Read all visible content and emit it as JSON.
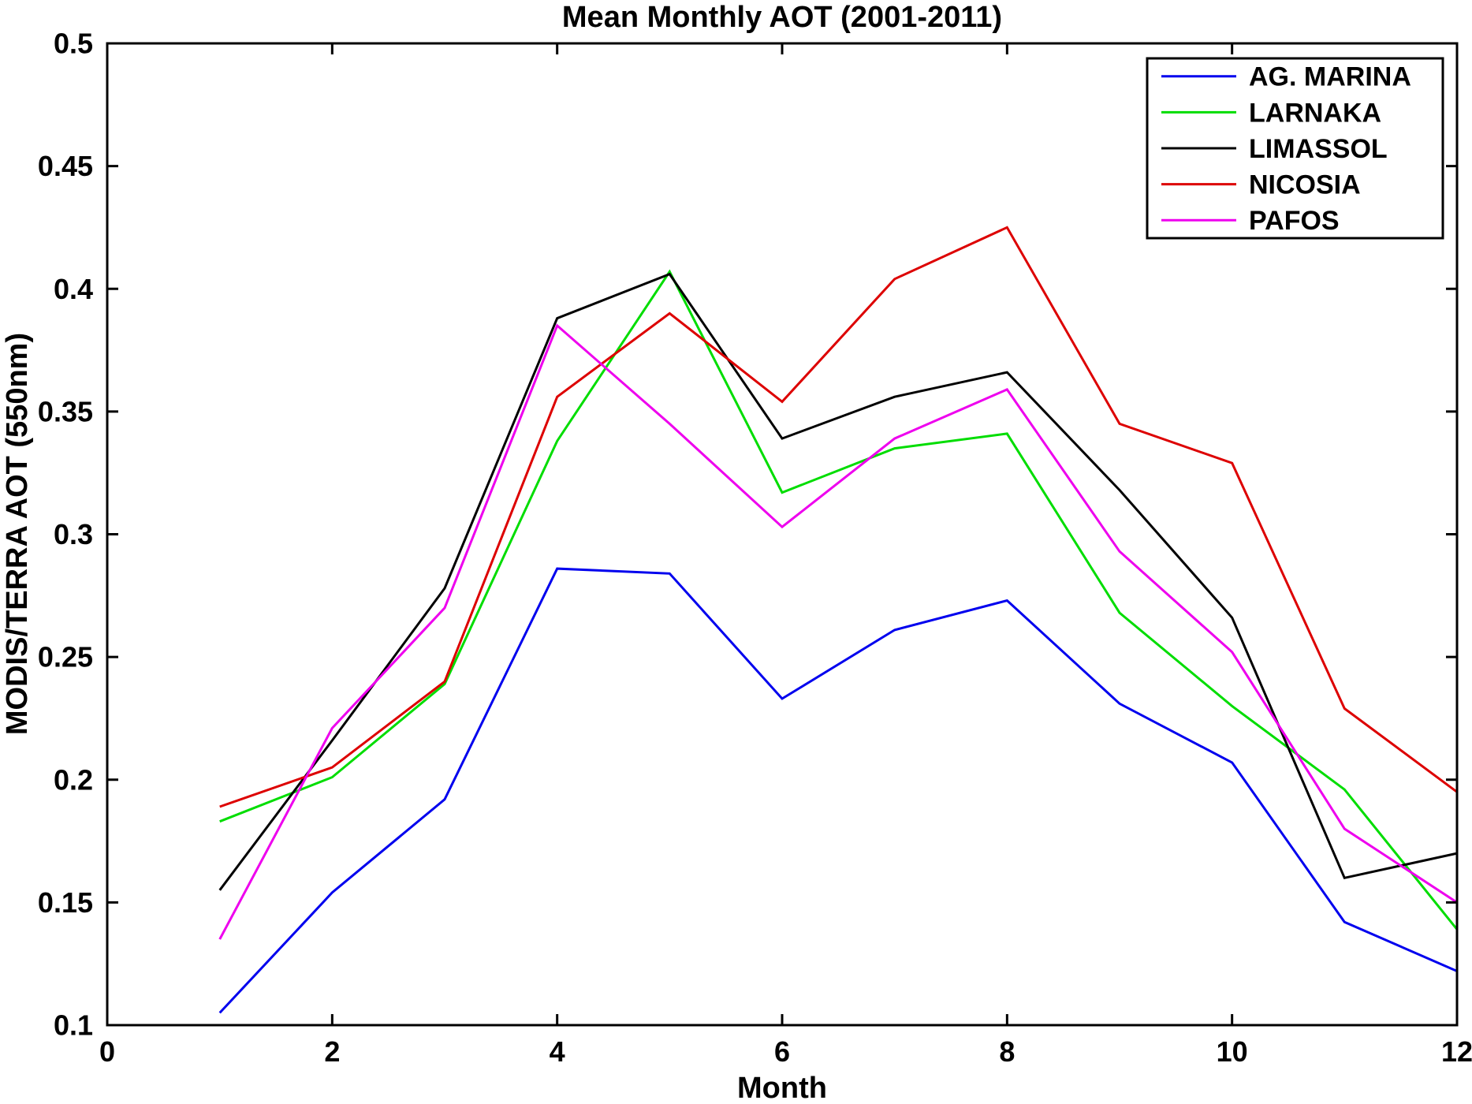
{
  "title": "Mean Monthly AOT (2001-2011)",
  "chart_data": {
    "type": "line",
    "title": "Mean Monthly AOT (2001-2011)",
    "xlabel": "Month",
    "ylabel": "MODIS/TERRA AOT (550nm)",
    "xlim": [
      0,
      12
    ],
    "ylim": [
      0.1,
      0.5
    ],
    "grid": false,
    "legend_position": "top-right",
    "x_ticks": [
      0,
      2,
      4,
      6,
      8,
      10,
      12
    ],
    "x_tick_labels": [
      "0",
      "2",
      "4",
      "6",
      "8",
      "10",
      "12"
    ],
    "y_ticks": [
      0.1,
      0.15,
      0.2,
      0.25,
      0.3,
      0.35,
      0.4,
      0.45,
      0.5
    ],
    "y_tick_labels": [
      "0.1",
      "0.15",
      "0.2",
      "0.25",
      "0.3",
      "0.35",
      "0.4",
      "0.45",
      "0.5"
    ],
    "x": [
      1,
      2,
      3,
      4,
      5,
      6,
      7,
      8,
      9,
      10,
      11,
      12
    ],
    "series": [
      {
        "name": "AG. MARINA",
        "color": "#0000EE",
        "values": [
          0.105,
          0.154,
          0.192,
          0.286,
          0.284,
          0.233,
          0.261,
          0.273,
          0.231,
          0.207,
          0.142,
          0.122
        ]
      },
      {
        "name": "LARNAKA",
        "color": "#00DD00",
        "values": [
          0.183,
          0.201,
          0.239,
          0.338,
          0.407,
          0.317,
          0.335,
          0.341,
          0.268,
          0.23,
          0.196,
          0.139
        ]
      },
      {
        "name": "LIMASSOL",
        "color": "#000000",
        "values": [
          0.155,
          0.216,
          0.278,
          0.388,
          0.406,
          0.339,
          0.356,
          0.366,
          0.318,
          0.266,
          0.16,
          0.17
        ]
      },
      {
        "name": "NICOSIA",
        "color": "#DD0000",
        "values": [
          0.189,
          0.205,
          0.24,
          0.356,
          0.39,
          0.354,
          0.404,
          0.425,
          0.345,
          0.329,
          0.229,
          0.195
        ]
      },
      {
        "name": "PAFOS",
        "color": "#EE00EE",
        "values": [
          0.135,
          0.221,
          0.27,
          0.385,
          0.345,
          0.303,
          0.339,
          0.359,
          0.293,
          0.252,
          0.18,
          0.15
        ]
      }
    ]
  }
}
